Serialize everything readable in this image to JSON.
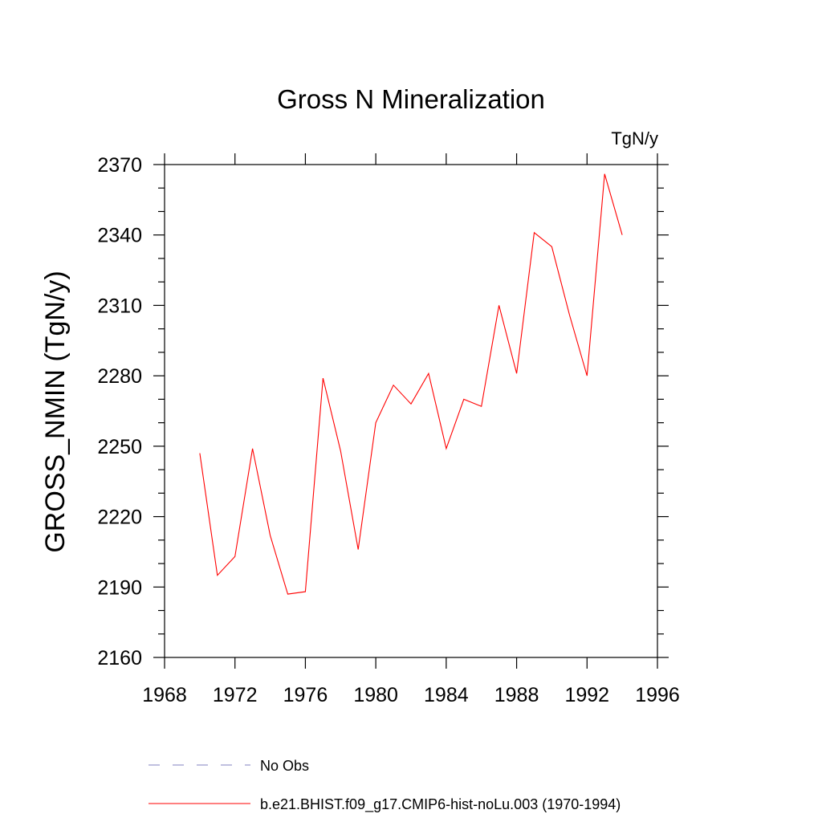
{
  "chart_data": {
    "type": "line",
    "title": "Gross N Mineralization",
    "units": "TgN/y",
    "ylabel": "GROSS_NMIN  (TgN/y)",
    "xlabel": "",
    "xlim": [
      1968,
      1996
    ],
    "ylim": [
      2160,
      2370
    ],
    "x_ticks": [
      1968,
      1972,
      1976,
      1980,
      1984,
      1988,
      1992,
      1996
    ],
    "x_tick_labels": [
      "1968",
      "1972",
      "1976",
      "1980",
      "1984",
      "1988",
      "1992",
      "1996"
    ],
    "y_ticks": [
      2160,
      2190,
      2220,
      2250,
      2280,
      2310,
      2340,
      2370
    ],
    "y_tick_labels": [
      "2160",
      "2190",
      "2220",
      "2250",
      "2280",
      "2310",
      "2340",
      "2370"
    ],
    "grid": false,
    "legend_position": "bottom",
    "series": [
      {
        "name": "No Obs",
        "color": "#8080c0",
        "style": "dashed",
        "x": [],
        "y": []
      },
      {
        "name": "b.e21.BHIST.f09_g17.CMIP6-hist-noLu.003 (1970-1994)",
        "color": "#ff0000",
        "style": "solid",
        "x": [
          1970,
          1971,
          1972,
          1973,
          1974,
          1975,
          1976,
          1977,
          1978,
          1979,
          1980,
          1981,
          1982,
          1983,
          1984,
          1985,
          1986,
          1987,
          1988,
          1989,
          1990,
          1991,
          1992,
          1993,
          1994
        ],
        "y": [
          2247,
          2195,
          2203,
          2249,
          2212,
          2187,
          2188,
          2279,
          2248,
          2206,
          2260,
          2276,
          2268,
          2281,
          2249,
          2270,
          2267,
          2310,
          2281,
          2341,
          2335,
          2306,
          2280,
          2366,
          2340
        ]
      }
    ]
  }
}
